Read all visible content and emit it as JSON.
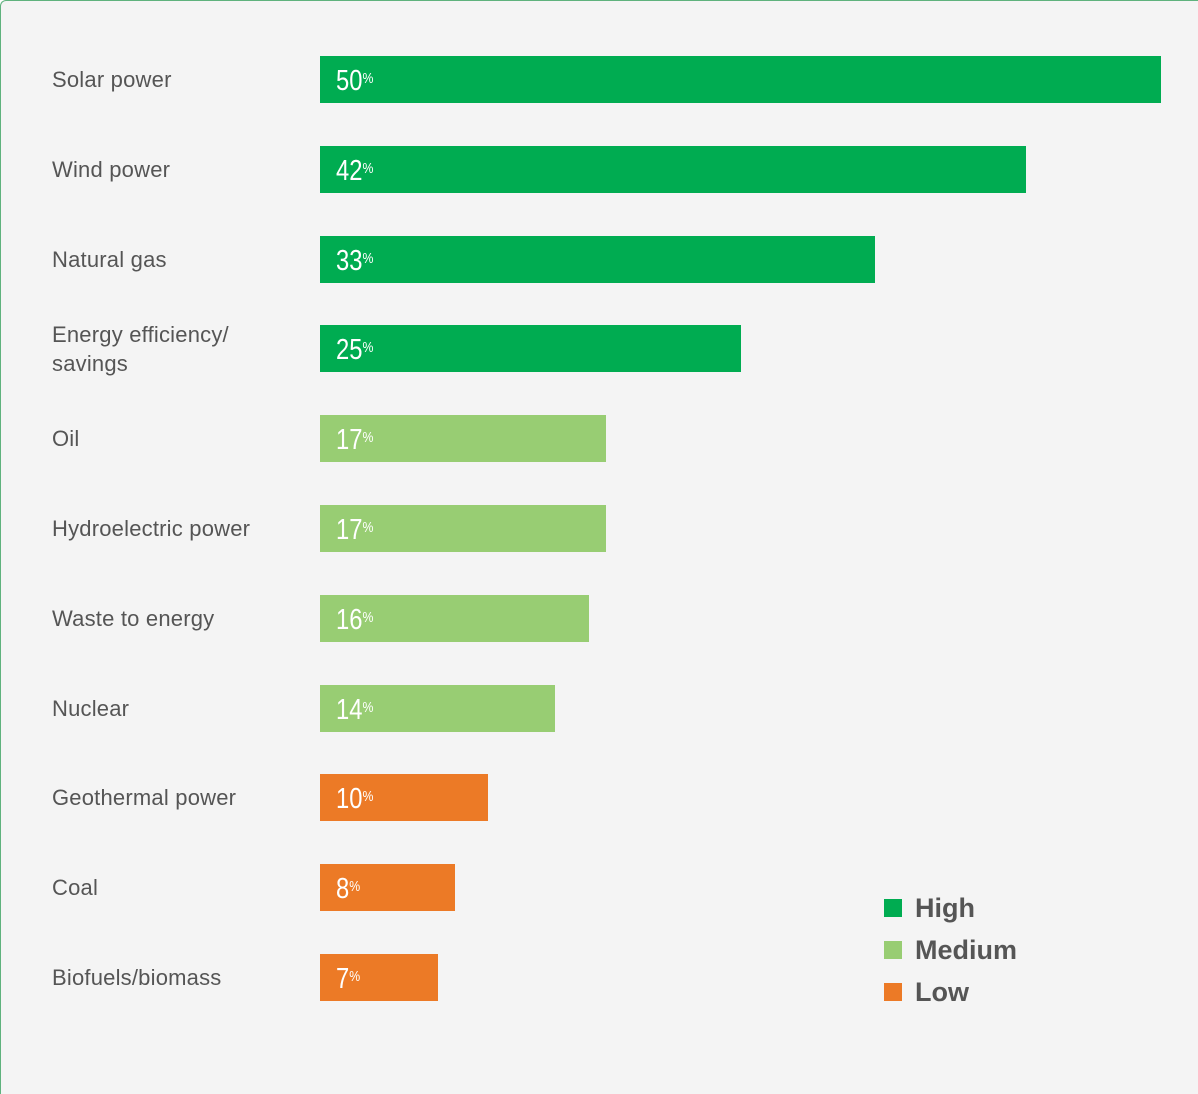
{
  "colors": {
    "high": "#00ac51",
    "medium": "#98cd73",
    "low": "#ec7a26"
  },
  "chart_data": {
    "type": "bar",
    "orientation": "horizontal",
    "unit": "%",
    "xlim": [
      0,
      50
    ],
    "grid": false,
    "legend_position": "bottom-right",
    "categories": [
      "Solar power",
      "Wind power",
      "Natural gas",
      "Energy efficiency/\nsavings",
      "Oil",
      "Hydroelectric power",
      "Waste to energy",
      "Nuclear",
      "Geothermal power",
      "Coal",
      "Biofuels/biomass"
    ],
    "values": [
      50,
      42,
      33,
      25,
      17,
      17,
      16,
      14,
      10,
      8,
      7
    ],
    "levels": [
      "high",
      "high",
      "high",
      "high",
      "medium",
      "medium",
      "medium",
      "medium",
      "low",
      "low",
      "low"
    ],
    "legend": [
      {
        "key": "high",
        "label": "High"
      },
      {
        "key": "medium",
        "label": "Medium"
      },
      {
        "key": "low",
        "label": "Low"
      }
    ]
  }
}
